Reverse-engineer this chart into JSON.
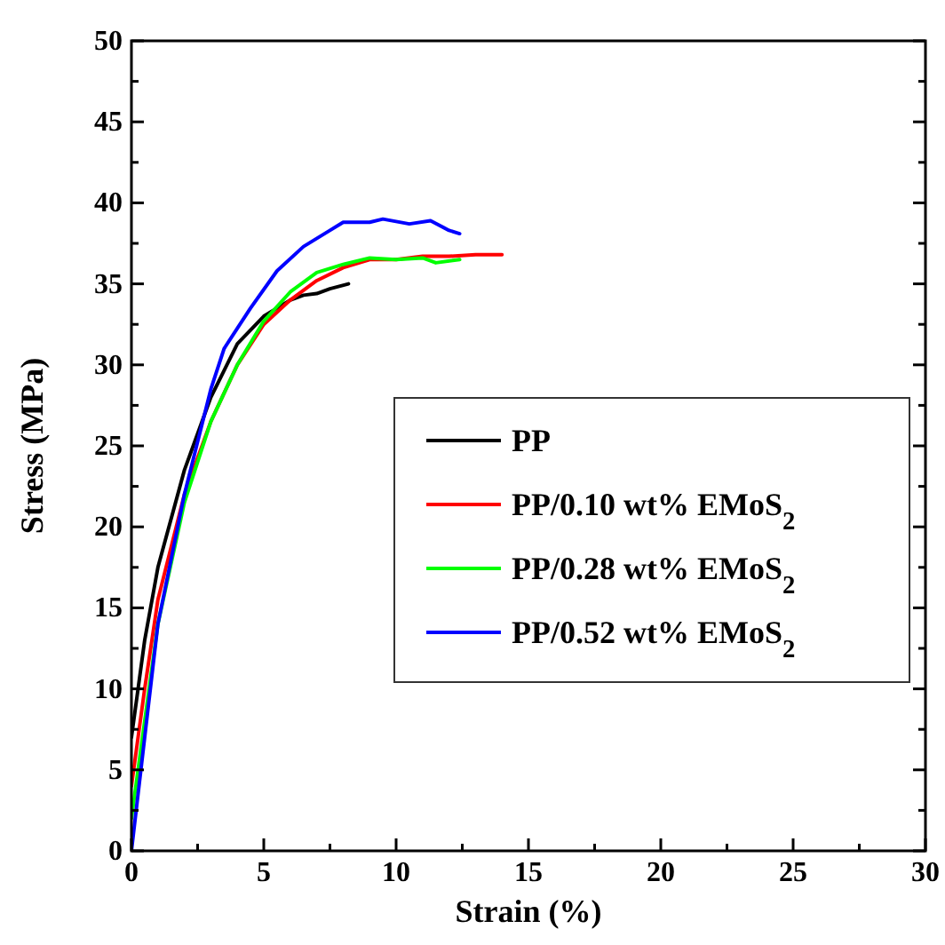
{
  "chart_data": {
    "type": "line",
    "xlabel": "Strain (%)",
    "ylabel": "Stress (MPa)",
    "xlim": [
      0,
      30
    ],
    "ylim": [
      0,
      50
    ],
    "xticks": [
      0,
      {
        "value": 2.5,
        "label": null
      },
      5,
      {
        "value": 7.5,
        "label": null
      },
      10,
      {
        "value": 12.5,
        "label": null
      },
      15,
      {
        "value": 17.5,
        "label": null
      },
      20,
      {
        "value": 22.5,
        "label": null
      },
      25,
      {
        "value": 27.5,
        "label": null
      },
      30
    ],
    "yticks": [
      0,
      {
        "value": 2.5,
        "label": null
      },
      5,
      {
        "value": 7.5,
        "label": null
      },
      10,
      {
        "value": 12.5,
        "label": null
      },
      15,
      {
        "value": 17.5,
        "label": null
      },
      20,
      {
        "value": 22.5,
        "label": null
      },
      25,
      {
        "value": 27.5,
        "label": null
      },
      30,
      {
        "value": 32.5,
        "label": null
      },
      35,
      {
        "value": 37.5,
        "label": null
      },
      40,
      {
        "value": 42.5,
        "label": null
      },
      45,
      {
        "value": 47.5,
        "label": null
      },
      50
    ],
    "grid": false,
    "legend": "right",
    "line_style": "solid",
    "series": [
      {
        "name": "PP",
        "color": "#000000",
        "x": [
          0,
          0.5,
          1,
          2,
          3,
          4,
          5,
          6,
          6.5,
          7,
          7.5,
          8.2
        ],
        "values": [
          7,
          13,
          17.5,
          23.5,
          28,
          31.3,
          33,
          34,
          34.3,
          34.4,
          34.7,
          35
        ]
      },
      {
        "name": "PP/0.10 wt% EMoS$_{2}$",
        "color": "#ff0000",
        "x": [
          0,
          0.5,
          1,
          2,
          3,
          4,
          5,
          6,
          7,
          8,
          9,
          10,
          11,
          12,
          13,
          14
        ],
        "values": [
          4,
          10,
          15.5,
          22,
          26.5,
          30,
          32.5,
          34,
          35.2,
          36,
          36.5,
          36.5,
          36.7,
          36.7,
          36.8,
          36.8
        ]
      },
      {
        "name": "PP/0.28 wt% EMoS$_{2}$",
        "color": "#00ff00",
        "x": [
          0,
          0.5,
          1,
          2,
          3,
          4,
          5,
          6,
          7,
          8,
          9,
          10,
          11,
          11.5,
          12.4
        ],
        "values": [
          2,
          8,
          14,
          21.5,
          26.5,
          30,
          32.7,
          34.5,
          35.7,
          36.2,
          36.6,
          36.5,
          36.6,
          36.3,
          36.5
        ]
      },
      {
        "name": "PP/0.52 wt% EMoS$_{2}$",
        "color": "#0000ff",
        "x": [
          0,
          0.5,
          1,
          2,
          3,
          3.5,
          4.5,
          5.5,
          6.5,
          7.5,
          8,
          9,
          9.5,
          10.5,
          11.3,
          12,
          12.4
        ],
        "values": [
          0,
          7,
          14,
          22,
          28.5,
          31,
          33.5,
          35.8,
          37.3,
          38.3,
          38.8,
          38.8,
          39,
          38.7,
          38.9,
          38.3,
          38.1
        ]
      }
    ]
  }
}
